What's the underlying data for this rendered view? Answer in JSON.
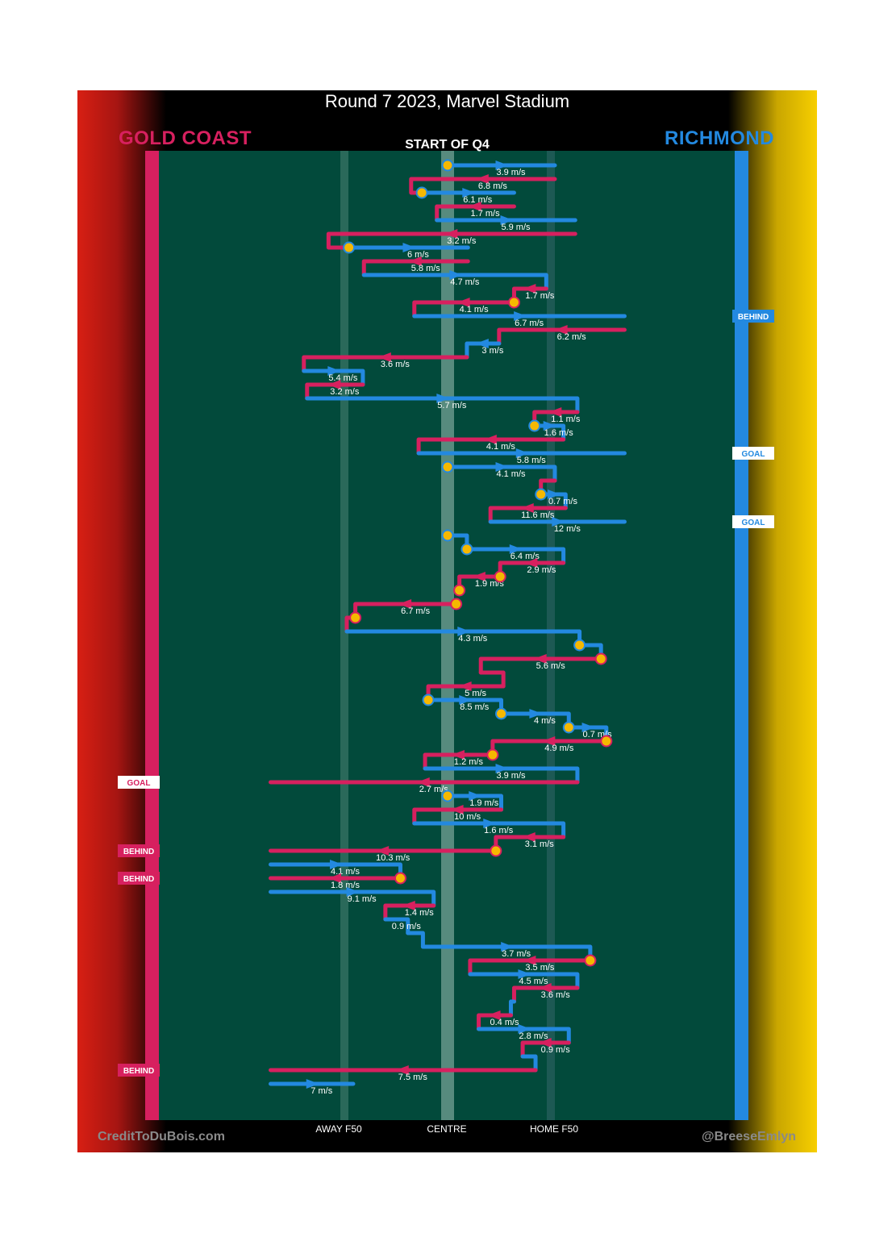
{
  "title": "Round 7 2023, Marvel Stadium",
  "subtitle": "START OF Q4",
  "teams": {
    "left": "GOLD COAST",
    "right": "RICHMOND"
  },
  "colors": {
    "gold_coast": "#d7205f",
    "richmond": "#2389e0",
    "field": "#024a3b",
    "marker": "#f5b800"
  },
  "credits": {
    "left": "CreditToDuBois.com",
    "right": "@BreeseEmlyn"
  },
  "chart_data": {
    "type": "line",
    "description_axis": {
      "x_ticks": [
        "AWAY F50",
        "CENTRE",
        "HOME F50"
      ]
    },
    "series": [
      {
        "name": "GOLD COAST"
      },
      {
        "name": "RICHMOND"
      }
    ],
    "chains": [
      {
        "team": "RICHMOND",
        "x": [
          0.0,
          1.0
        ],
        "y": 0,
        "speed": "3.9 m/s",
        "marker": "start"
      },
      {
        "team": "GOLD COAST",
        "x": [
          1.0,
          -0.34,
          -0.34,
          -0.24
        ],
        "y": 1,
        "speed": "6.8 m/s"
      },
      {
        "team": "RICHMOND",
        "x": [
          -0.24,
          0.62
        ],
        "y": 2,
        "speed": "6.1 m/s",
        "marker": "start"
      },
      {
        "team": "GOLD COAST",
        "x": [
          0.62,
          -0.1,
          -0.1
        ],
        "y": 3,
        "speed": "1.7 m/s"
      },
      {
        "team": "RICHMOND",
        "x": [
          -0.1,
          1.19
        ],
        "y": 4,
        "speed": "5.9 m/s"
      },
      {
        "team": "GOLD COAST",
        "x": [
          1.19,
          -1.11,
          -1.11,
          -0.92
        ],
        "y": 5,
        "speed": "3.2 m/s"
      },
      {
        "team": "RICHMOND",
        "x": [
          -0.92,
          0.19
        ],
        "y": 6,
        "speed": "6 m/s",
        "marker": "start"
      },
      {
        "team": "GOLD COAST",
        "x": [
          0.19,
          -0.78,
          -0.78
        ],
        "y": 7,
        "speed": "5.8 m/s"
      },
      {
        "team": "RICHMOND",
        "x": [
          -0.78,
          0.92,
          0.92
        ],
        "y": 8,
        "speed": "4.7 m/s"
      },
      {
        "team": "GOLD COAST",
        "x": [
          0.92,
          0.62,
          0.62
        ],
        "y": 9,
        "speed": "1.7 m/s"
      },
      {
        "team": "GOLD COAST",
        "x": [
          0.62,
          -0.31,
          -0.31
        ],
        "y": 10,
        "speed": "4.1 m/s",
        "marker": "start"
      },
      {
        "team": "RICHMOND",
        "x": [
          -0.31,
          1.65
        ],
        "y": 11,
        "speed": "6.7 m/s",
        "result": "BEHIND"
      },
      {
        "team": "GOLD COAST",
        "x": [
          1.65,
          0.48,
          0.48
        ],
        "y": 12,
        "speed": "6.2 m/s"
      },
      {
        "team": "RICHMOND",
        "x": [
          0.48,
          0.18,
          0.18
        ],
        "y": 13,
        "speed": "3 m/s"
      },
      {
        "team": "GOLD COAST",
        "x": [
          0.18,
          -1.34,
          -1.34
        ],
        "y": 14,
        "speed": "3.6 m/s"
      },
      {
        "team": "RICHMOND",
        "x": [
          -1.34,
          -0.79,
          -0.79
        ],
        "y": 15,
        "speed": "5.4 m/s"
      },
      {
        "team": "GOLD COAST",
        "x": [
          -0.79,
          -1.31,
          -1.31
        ],
        "y": 16,
        "speed": "3.2 m/s"
      },
      {
        "team": "RICHMOND",
        "x": [
          -1.31,
          1.21,
          1.21
        ],
        "y": 17,
        "speed": "5.7 m/s"
      },
      {
        "team": "GOLD COAST",
        "x": [
          1.21,
          0.81,
          0.81
        ],
        "y": 18,
        "speed": "1.1 m/s"
      },
      {
        "team": "RICHMOND",
        "x": [
          0.81,
          1.08,
          1.08
        ],
        "y": 19,
        "speed": "1.6 m/s",
        "marker": "start"
      },
      {
        "team": "GOLD COAST",
        "x": [
          1.08,
          -0.27,
          -0.27
        ],
        "y": 20,
        "speed": "4.1 m/s"
      },
      {
        "team": "RICHMOND",
        "x": [
          -0.27,
          1.65
        ],
        "y": 21,
        "speed": "5.8 m/s",
        "result": "GOAL"
      },
      {
        "team": "RICHMOND",
        "x": [
          0.0,
          1.0,
          1.0
        ],
        "y": 22,
        "speed": "4.1 m/s",
        "marker": "start"
      },
      {
        "team": "GOLD COAST",
        "x": [
          1.0,
          0.87,
          0.87
        ],
        "y": 23,
        "speed": ""
      },
      {
        "team": "RICHMOND",
        "x": [
          0.87,
          1.1,
          1.1
        ],
        "y": 24,
        "speed": "0.7 m/s",
        "marker": "start"
      },
      {
        "team": "GOLD COAST",
        "x": [
          1.1,
          0.4,
          0.4
        ],
        "y": 25,
        "speed": "11.6 m/s"
      },
      {
        "team": "RICHMOND",
        "x": [
          0.4,
          1.65
        ],
        "y": 26,
        "speed": "12 m/s",
        "result": "GOAL"
      },
      {
        "team": "RICHMOND",
        "x": [
          0.0,
          0.18,
          0.18
        ],
        "y": 27,
        "speed": "",
        "marker": "start"
      },
      {
        "team": "RICHMOND",
        "x": [
          0.18,
          1.08,
          1.08
        ],
        "y": 28,
        "speed": "6.4 m/s",
        "marker": "start"
      },
      {
        "team": "GOLD COAST",
        "x": [
          1.08,
          0.49,
          0.49
        ],
        "y": 29,
        "speed": "2.9 m/s"
      },
      {
        "team": "GOLD COAST",
        "x": [
          0.49,
          0.11,
          0.11
        ],
        "y": 30,
        "speed": "1.9 m/s",
        "marker": "start"
      },
      {
        "team": "GOLD COAST",
        "x": [
          0.11,
          0.08
        ],
        "y": 31,
        "speed": "",
        "marker": "start"
      },
      {
        "team": "GOLD COAST",
        "x": [
          0.08,
          -0.86,
          -0.86
        ],
        "y": 32,
        "speed": "6.7 m/s",
        "marker": "start"
      },
      {
        "team": "GOLD COAST",
        "x": [
          -0.86,
          -0.94,
          -0.94
        ],
        "y": 33,
        "speed": "",
        "marker": "start"
      },
      {
        "team": "RICHMOND",
        "x": [
          -0.94,
          1.23,
          1.23
        ],
        "y": 34,
        "speed": "4.3 m/s"
      },
      {
        "team": "RICHMOND",
        "x": [
          1.23,
          1.43,
          1.43
        ],
        "y": 35,
        "speed": "",
        "marker": "start"
      },
      {
        "team": "GOLD COAST",
        "x": [
          1.43,
          0.31,
          0.31
        ],
        "y": 36,
        "speed": "5.6 m/s",
        "marker": "start"
      },
      {
        "team": "GOLD COAST",
        "x": [
          0.31,
          0.52,
          0.52
        ],
        "y": 37,
        "speed": ""
      },
      {
        "team": "GOLD COAST",
        "x": [
          0.52,
          -0.18,
          -0.18
        ],
        "y": 38,
        "speed": "5 m/s"
      },
      {
        "team": "RICHMOND",
        "x": [
          -0.18,
          0.5,
          0.5
        ],
        "y": 39,
        "speed": "8.5 m/s",
        "marker": "start"
      },
      {
        "team": "RICHMOND",
        "x": [
          0.5,
          1.13,
          1.13
        ],
        "y": 40,
        "speed": "4 m/s",
        "marker": "start"
      },
      {
        "team": "RICHMOND",
        "x": [
          1.13,
          1.48,
          1.48
        ],
        "y": 41,
        "speed": "0.7 m/s",
        "marker": "start"
      },
      {
        "team": "GOLD COAST",
        "x": [
          1.48,
          0.42,
          0.42
        ],
        "y": 42,
        "speed": "4.9 m/s",
        "marker": "start"
      },
      {
        "team": "GOLD COAST",
        "x": [
          0.42,
          -0.21,
          -0.21
        ],
        "y": 43,
        "speed": "1.2 m/s",
        "marker": "start"
      },
      {
        "team": "RICHMOND",
        "x": [
          -0.21,
          1.21,
          1.21
        ],
        "y": 44,
        "speed": "3.9 m/s"
      },
      {
        "team": "GOLD COAST",
        "x": [
          1.21,
          -1.65
        ],
        "y": 45,
        "speed": "2.7 m/s",
        "result": "GOAL"
      },
      {
        "team": "RICHMOND",
        "x": [
          0.0,
          0.5,
          0.5
        ],
        "y": 46,
        "speed": "1.9 m/s",
        "marker": "start"
      },
      {
        "team": "GOLD COAST",
        "x": [
          0.5,
          -0.31,
          -0.31
        ],
        "y": 47,
        "speed": "10 m/s"
      },
      {
        "team": "RICHMOND",
        "x": [
          -0.31,
          1.08,
          1.08
        ],
        "y": 48,
        "speed": "1.6 m/s"
      },
      {
        "team": "GOLD COAST",
        "x": [
          1.08,
          0.45,
          0.45
        ],
        "y": 49,
        "speed": "3.1 m/s"
      },
      {
        "team": "GOLD COAST",
        "x": [
          0.45,
          -1.65
        ],
        "y": 50,
        "speed": "10.3 m/s",
        "marker": "start",
        "result": "BEHIND"
      },
      {
        "team": "RICHMOND",
        "x": [
          -1.65,
          -0.44,
          -0.44
        ],
        "y": 51,
        "speed": "4.1 m/s"
      },
      {
        "team": "GOLD COAST",
        "x": [
          -0.44,
          -1.65
        ],
        "y": 52,
        "speed": "1.8 m/s",
        "marker": "start",
        "result": "BEHIND"
      },
      {
        "team": "RICHMOND",
        "x": [
          -1.65,
          -0.13,
          -0.13
        ],
        "y": 53,
        "speed": "9.1 m/s"
      },
      {
        "team": "GOLD COAST",
        "x": [
          -0.13,
          -0.58,
          -0.58
        ],
        "y": 54,
        "speed": "1.4 m/s"
      },
      {
        "team": "RICHMOND",
        "x": [
          -0.58,
          -0.37,
          -0.37
        ],
        "y": 55,
        "speed": "0.9 m/s"
      },
      {
        "team": "RICHMOND",
        "x": [
          -0.37,
          -0.23,
          -0.23
        ],
        "y": 56,
        "speed": ""
      },
      {
        "team": "RICHMOND",
        "x": [
          -0.23,
          1.33,
          1.33
        ],
        "y": 57,
        "speed": "3.7 m/s"
      },
      {
        "team": "GOLD COAST",
        "x": [
          1.33,
          0.21,
          0.21
        ],
        "y": 58,
        "speed": "3.5 m/s",
        "marker": "start"
      },
      {
        "team": "RICHMOND",
        "x": [
          0.21,
          1.21,
          1.21
        ],
        "y": 59,
        "speed": "4.5 m/s"
      },
      {
        "team": "GOLD COAST",
        "x": [
          1.21,
          0.62,
          0.62
        ],
        "y": 60,
        "speed": "3.6 m/s"
      },
      {
        "team": "RICHMOND",
        "x": [
          0.62,
          0.59,
          0.59
        ],
        "y": 61,
        "speed": ""
      },
      {
        "team": "GOLD COAST",
        "x": [
          0.59,
          0.29,
          0.29
        ],
        "y": 62,
        "speed": "0.4 m/s"
      },
      {
        "team": "RICHMOND",
        "x": [
          0.29,
          1.13,
          1.13
        ],
        "y": 63,
        "speed": "2.8 m/s"
      },
      {
        "team": "GOLD COAST",
        "x": [
          1.13,
          0.7,
          0.7
        ],
        "y": 64,
        "speed": "0.9 m/s"
      },
      {
        "team": "RICHMOND",
        "x": [
          0.7,
          0.82,
          0.82
        ],
        "y": 65,
        "speed": ""
      },
      {
        "team": "GOLD COAST",
        "x": [
          0.82,
          -1.65
        ],
        "y": 66,
        "speed": "7.5 m/s",
        "result": "BEHIND"
      },
      {
        "team": "RICHMOND",
        "x": [
          -1.65,
          -0.88
        ],
        "y": 67,
        "speed": "7 m/s"
      }
    ]
  }
}
